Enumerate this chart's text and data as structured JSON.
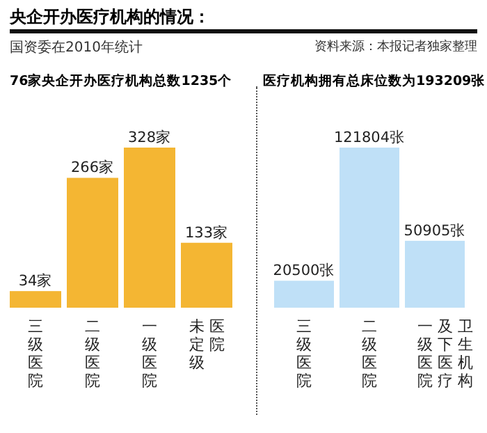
{
  "chart_data": [
    {
      "type": "other",
      "title": "央企开办医疗机构的情况：",
      "subtitle": "国资委在2010年统计",
      "annotations": [
        "资料来源：本报记者独家整理"
      ]
    },
    {
      "type": "bar",
      "title": "76家央企开办医疗机构总数1235个",
      "categories": [
        "三级医院",
        "二级医院",
        "一级医院",
        "未定级医院"
      ],
      "values": [
        34,
        266,
        328,
        133
      ],
      "value_labels": [
        "34家",
        "266家",
        "328家",
        "133家"
      ],
      "color": "#f4b633"
    },
    {
      "type": "bar",
      "title": "医疗机构拥有总床位数为193209张",
      "categories": [
        "三级医院",
        "二级医院",
        "一级医院及下医疗卫生机构"
      ],
      "values": [
        20500,
        121804,
        50905
      ],
      "value_labels": [
        "20500张",
        "121804张",
        "50905张"
      ],
      "color": "#bfe0f7"
    }
  ]
}
